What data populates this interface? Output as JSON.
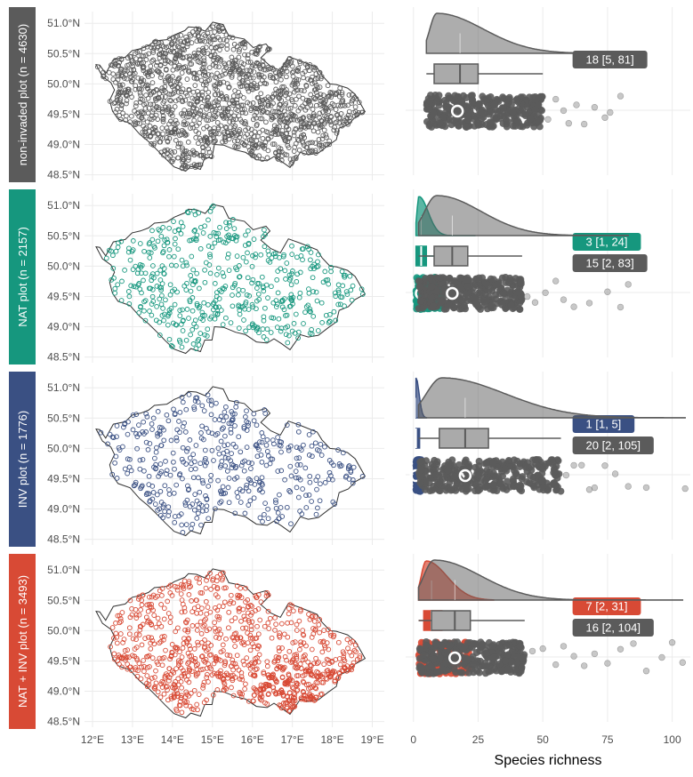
{
  "figure": {
    "x_axis_title": "Species richness"
  },
  "chart_data": [
    {
      "type": "scatter",
      "subtype": "point map of plot locations, four panels",
      "x_ticks": [
        "12°E",
        "13°E",
        "14°E",
        "15°E",
        "16°E",
        "17°E",
        "18°E",
        "19°E"
      ],
      "y_ticks": [
        "51.0°N",
        "50.5°N",
        "50.0°N",
        "49.5°N",
        "49.0°N",
        "48.5°N"
      ],
      "xlim": [
        11.8,
        19.3
      ],
      "ylim": [
        48.45,
        51.15
      ],
      "grid": true,
      "panels": [
        {
          "strip": "non-invaded plot (n = 4630)",
          "color": "#5b5b5b"
        },
        {
          "strip": "NAT plot (n = 2157)",
          "color": "#16977e"
        },
        {
          "strip": "INV plot (n = 1776)",
          "color": "#3a5083"
        },
        {
          "strip": "NAT + INV plot (n = 3493)",
          "color": "#d84a35"
        }
      ]
    },
    {
      "type": "raincloud",
      "subtype": "density + boxplot + jittered points per group",
      "xlabel": "Species richness",
      "x_ticks": [
        "0",
        "25",
        "50",
        "75",
        "100"
      ],
      "xlim": [
        -3,
        107
      ],
      "grid": true,
      "colors": {
        "total": "#5b5b5b",
        "non_invaded": "#5b5b5b",
        "nat": "#16977e",
        "inv": "#3a5083",
        "nat_inv": "#d84a35"
      },
      "panels": [
        {
          "group": "non-invaded plot (n = 4630)",
          "series": [
            {
              "kind": "total",
              "median": 18,
              "min": 5,
              "max": 81,
              "label": "18 [5, 81]",
              "q1": 8,
              "q3": 25,
              "whisker_low": 5,
              "whisker_high": 50,
              "mean": 17,
              "outliers": [
                52,
                55,
                58,
                60,
                63,
                66,
                70,
                74,
                76,
                80
              ]
            }
          ]
        },
        {
          "group": "NAT plot (n = 2157)",
          "series": [
            {
              "kind": "nat",
              "median": 3,
              "min": 1,
              "max": 24,
              "label": "3 [1, 24]",
              "q1": 1,
              "q3": 5,
              "whisker_low": 1,
              "whisker_high": 9,
              "mean": 3
            },
            {
              "kind": "total",
              "median": 15,
              "min": 2,
              "max": 83,
              "label": "15 [2, 83]",
              "q1": 8,
              "q3": 21,
              "whisker_low": 2,
              "whisker_high": 42,
              "mean": 15,
              "outliers": [
                44,
                47,
                51,
                55,
                58,
                62,
                68,
                75,
                80,
                83
              ]
            }
          ]
        },
        {
          "group": "INV plot (n = 1776)",
          "series": [
            {
              "kind": "inv",
              "median": 1,
              "min": 1,
              "max": 5,
              "label": "1 [1, 5]",
              "q1": 1,
              "q3": 1,
              "whisker_low": 1,
              "whisker_high": 1,
              "mean": 1
            },
            {
              "kind": "total",
              "median": 20,
              "min": 2,
              "max": 105,
              "label": "20 [2, 105]",
              "q1": 10,
              "q3": 29,
              "whisker_low": 2,
              "whisker_high": 57,
              "mean": 20,
              "outliers": [
                59,
                62,
                65,
                68,
                70,
                74,
                78,
                83,
                90,
                105
              ]
            }
          ]
        },
        {
          "group": "NAT + INV plot (n = 3493)",
          "series": [
            {
              "kind": "nat_inv",
              "median": 7,
              "min": 2,
              "max": 31,
              "label": "7 [2, 31]",
              "q1": 4,
              "q3": 11,
              "whisker_low": 2,
              "whisker_high": 20,
              "mean": 7
            },
            {
              "kind": "total",
              "median": 16,
              "min": 2,
              "max": 104,
              "label": "16 [2, 104]",
              "q1": 7,
              "q3": 22,
              "whisker_low": 2,
              "whisker_high": 43,
              "mean": 16,
              "outliers": [
                46,
                50,
                55,
                58,
                62,
                66,
                70,
                75,
                80,
                85,
                90,
                96,
                100,
                104
              ]
            }
          ]
        }
      ]
    }
  ]
}
